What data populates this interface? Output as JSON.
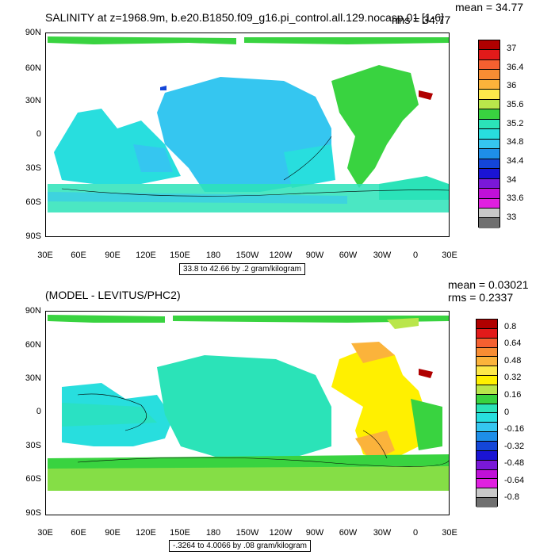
{
  "panel1": {
    "title": "SALINITY at z=1968.9m, b.e20.B1850.f09_g16.pi_control.all.129.nocasp.01 [1-6]",
    "mean": "mean = 34.77",
    "rms": "rms = 34.77",
    "range": "33.8 to 42.66 by .2 gram/kilogram",
    "colorbar_labels": [
      "37",
      "36.4",
      "36",
      "35.6",
      "35.2",
      "34.8",
      "34.4",
      "34",
      "33.6",
      "33"
    ],
    "colors": [
      "#b00000",
      "#e21a1a",
      "#f56030",
      "#f88d33",
      "#fbb33b",
      "#fde84a",
      "#b9e64b",
      "#39d340",
      "#2be3b8",
      "#28dede",
      "#35c6f0",
      "#1e8ee8",
      "#1446d8",
      "#1a14d4",
      "#7a18d8",
      "#c010d8",
      "#e020e0",
      "#c8c8c8",
      "#707070"
    ]
  },
  "panel2": {
    "title": "(MODEL - LEVITUS/PHC2)",
    "mean": "mean = 0.03021",
    "rms": "rms = 0.2337",
    "range": "-.3264 to 4.0066 by .08 gram/kilogram",
    "colorbar_labels": [
      "0.8",
      "0.64",
      "0.48",
      "0.32",
      "0.16",
      "0",
      "-0.16",
      "-0.32",
      "-0.48",
      "-0.64",
      "-0.8"
    ],
    "colors": [
      "#b00000",
      "#e21a1a",
      "#f56030",
      "#f88d33",
      "#fbb33b",
      "#fde84a",
      "#fff000",
      "#b9e64b",
      "#39d340",
      "#2be3b8",
      "#28dede",
      "#35c6f0",
      "#1e8ee8",
      "#1446d8",
      "#1a14d4",
      "#7a18d8",
      "#c010d8",
      "#e020e0",
      "#c8c8c8",
      "#707070"
    ]
  },
  "axes": {
    "lat_labels": [
      "90N",
      "60N",
      "30N",
      "0",
      "30S",
      "60S",
      "90S"
    ],
    "lon_labels": [
      "30E",
      "60E",
      "90E",
      "120E",
      "150E",
      "180",
      "150W",
      "120W",
      "90W",
      "60W",
      "30W",
      "0",
      "30E"
    ]
  }
}
